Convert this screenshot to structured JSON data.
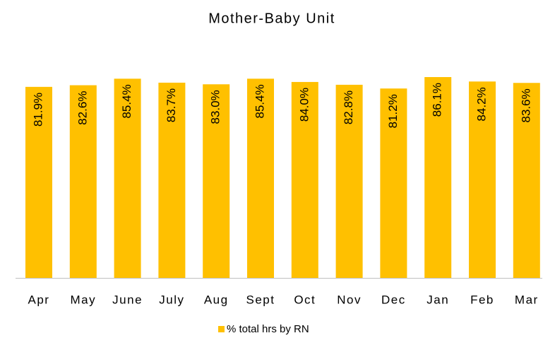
{
  "chart_data": {
    "type": "bar",
    "title": "Mother-Baby Unit",
    "categories": [
      "Apr",
      "May",
      "June",
      "July",
      "Aug",
      "Sept",
      "Oct",
      "Nov",
      "Dec",
      "Jan",
      "Feb",
      "Mar"
    ],
    "series": [
      {
        "name": "% total hrs by RN",
        "color": "#ffc000",
        "values": [
          81.9,
          82.6,
          85.4,
          83.7,
          83.0,
          85.4,
          84.0,
          82.8,
          81.2,
          86.1,
          84.2,
          83.6
        ],
        "value_labels": [
          "81.9%",
          "82.6%",
          "85.4%",
          "83.7%",
          "83.0%",
          "85.4%",
          "84.0%",
          "82.8%",
          "81.2%",
          "86.1%",
          "84.2%",
          "83.6%"
        ]
      }
    ],
    "legend": "bottom"
  }
}
